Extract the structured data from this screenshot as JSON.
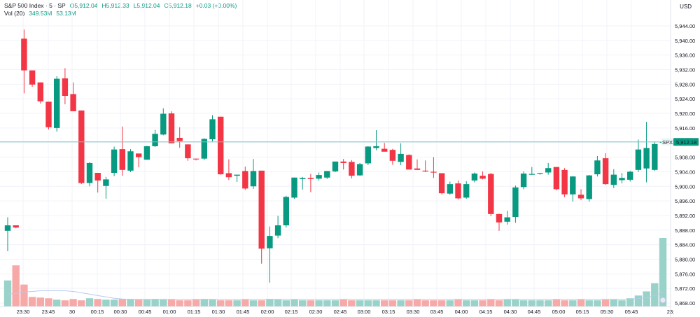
{
  "legend": {
    "symbol": "S&P 500 Index · 5 · SP",
    "open": "O5,912.04",
    "high": "H5,912.33",
    "low": "L5,912.04",
    "close": "C5,912.18",
    "change": "+0.03 (+0.00%)",
    "vol_label": "Vol (20)",
    "vol_value": "349.53M",
    "vol_ma": "53.13M"
  },
  "currency": "USD",
  "price_tag": {
    "symbol": "SPX",
    "value": "5,912.18"
  },
  "chart_data": {
    "type": "candlestick",
    "title": "S&P 500 Index · 5 · SP",
    "ylim": [
      5866,
      5948
    ],
    "y_ticks": [
      "5,944.00",
      "5,940.00",
      "5,936.00",
      "5,932.00",
      "5,928.00",
      "5,924.00",
      "5,920.00",
      "5,916.00",
      "5,912.00",
      "5,908.00",
      "5,904.00",
      "5,900.00",
      "5,896.00",
      "5,892.00",
      "5,888.00",
      "5,884.00",
      "5,880.00",
      "5,876.00",
      "5,872.00",
      "5,868.00"
    ],
    "x_ticks": [
      "23:30",
      "23:45",
      "30",
      "00:15",
      "00:30",
      "00:45",
      "01:00",
      "01:15",
      "01:30",
      "01:45",
      "02:00",
      "02:15",
      "02:30",
      "02:45",
      "03:00",
      "03:15",
      "03:30",
      "03:45",
      "04:00",
      "04:15",
      "04:30",
      "04:45",
      "05:00",
      "05:15",
      "05:30",
      "05:45",
      "23:"
    ],
    "last_price": 5912.18,
    "colors": {
      "up": "#089981",
      "down": "#F23645",
      "vol_up": "#98D2C8",
      "vol_down": "#F7A9A8",
      "ma": "#B8C9F0",
      "grid": "#F0F3FA"
    },
    "candles": [
      {
        "o": 5887.8,
        "h": 5891.5,
        "l": 5882.2,
        "c": 5889.3
      },
      {
        "o": 5889.3,
        "h": 5889.3,
        "l": 5888.5,
        "c": 5888.7
      },
      {
        "o": 5940.5,
        "h": 5943.0,
        "l": 5925.5,
        "c": 5931.8
      },
      {
        "o": 5931.8,
        "h": 5931.8,
        "l": 5927.3,
        "c": 5927.9
      },
      {
        "o": 5928.5,
        "h": 5928.5,
        "l": 5922.7,
        "c": 5923.3
      },
      {
        "o": 5923.2,
        "h": 5923.2,
        "l": 5915.6,
        "c": 5916.2
      },
      {
        "o": 5916.0,
        "h": 5930.2,
        "l": 5915.0,
        "c": 5929.5
      },
      {
        "o": 5929.6,
        "h": 5932.4,
        "l": 5922.5,
        "c": 5924.8
      },
      {
        "o": 5925.3,
        "h": 5928.5,
        "l": 5920.6,
        "c": 5920.6
      },
      {
        "o": 5920.8,
        "h": 5920.8,
        "l": 5900.6,
        "c": 5900.9
      },
      {
        "o": 5900.9,
        "h": 5906.6,
        "l": 5900.0,
        "c": 5906.4
      },
      {
        "o": 5903.7,
        "h": 5903.7,
        "l": 5898.3,
        "c": 5901.6
      },
      {
        "o": 5900.1,
        "h": 5902.6,
        "l": 5896.6,
        "c": 5901.9
      },
      {
        "o": 5903.7,
        "h": 5910.9,
        "l": 5902.8,
        "c": 5910.1
      },
      {
        "o": 5910.2,
        "h": 5916.4,
        "l": 5902.9,
        "c": 5904.5
      },
      {
        "o": 5904.3,
        "h": 5910.2,
        "l": 5903.9,
        "c": 5909.6
      },
      {
        "o": 5909.0,
        "h": 5909.0,
        "l": 5905.2,
        "c": 5908.0
      },
      {
        "o": 5907.3,
        "h": 5911.1,
        "l": 5907.3,
        "c": 5911.0
      },
      {
        "o": 5911.0,
        "h": 5915.5,
        "l": 5910.8,
        "c": 5914.4
      },
      {
        "o": 5914.2,
        "h": 5921.4,
        "l": 5914.0,
        "c": 5919.9
      },
      {
        "o": 5920.0,
        "h": 5920.6,
        "l": 5911.8,
        "c": 5911.8
      },
      {
        "o": 5913.3,
        "h": 5916.2,
        "l": 5910.6,
        "c": 5912.4
      },
      {
        "o": 5911.5,
        "h": 5911.5,
        "l": 5907.0,
        "c": 5907.7
      },
      {
        "o": 5907.6,
        "h": 5907.6,
        "l": 5907.1,
        "c": 5907.4
      },
      {
        "o": 5907.6,
        "h": 5913.2,
        "l": 5907.2,
        "c": 5913.0
      },
      {
        "o": 5912.9,
        "h": 5919.5,
        "l": 5912.3,
        "c": 5918.4
      },
      {
        "o": 5919.1,
        "h": 5919.1,
        "l": 5903.2,
        "c": 5903.3
      },
      {
        "o": 5903.6,
        "h": 5907.4,
        "l": 5901.7,
        "c": 5902.5
      },
      {
        "o": 5902.9,
        "h": 5902.9,
        "l": 5901.2,
        "c": 5903.2
      },
      {
        "o": 5904.2,
        "h": 5905.4,
        "l": 5899.0,
        "c": 5899.4
      },
      {
        "o": 5900.0,
        "h": 5907.5,
        "l": 5899.3,
        "c": 5904.2
      },
      {
        "o": 5904.3,
        "h": 5904.3,
        "l": 5878.8,
        "c": 5882.9
      },
      {
        "o": 5883.0,
        "h": 5889.0,
        "l": 5873.6,
        "c": 5886.4
      },
      {
        "o": 5886.5,
        "h": 5891.9,
        "l": 5885.8,
        "c": 5889.3
      },
      {
        "o": 5889.3,
        "h": 5897.4,
        "l": 5888.7,
        "c": 5897.1
      },
      {
        "o": 5896.9,
        "h": 5902.4,
        "l": 5896.6,
        "c": 5902.4
      },
      {
        "o": 5902.0,
        "h": 5902.6,
        "l": 5899.1,
        "c": 5902.3
      },
      {
        "o": 5902.3,
        "h": 5903.4,
        "l": 5898.4,
        "c": 5902.0
      },
      {
        "o": 5902.1,
        "h": 5903.8,
        "l": 5901.6,
        "c": 5903.1
      },
      {
        "o": 5902.4,
        "h": 5904.2,
        "l": 5902.0,
        "c": 5904.2
      },
      {
        "o": 5904.1,
        "h": 5906.6,
        "l": 5903.9,
        "c": 5906.8
      },
      {
        "o": 5906.8,
        "h": 5907.5,
        "l": 5904.6,
        "c": 5906.4
      },
      {
        "o": 5906.7,
        "h": 5907.2,
        "l": 5902.2,
        "c": 5902.9
      },
      {
        "o": 5903.0,
        "h": 5906.4,
        "l": 5902.9,
        "c": 5906.1
      },
      {
        "o": 5906.3,
        "h": 5911.0,
        "l": 5905.8,
        "c": 5910.9
      },
      {
        "o": 5910.5,
        "h": 5915.4,
        "l": 5909.9,
        "c": 5911.0
      },
      {
        "o": 5910.3,
        "h": 5911.9,
        "l": 5909.6,
        "c": 5909.5
      },
      {
        "o": 5910.0,
        "h": 5910.3,
        "l": 5905.9,
        "c": 5907.0
      },
      {
        "o": 5906.7,
        "h": 5911.8,
        "l": 5905.8,
        "c": 5908.9
      },
      {
        "o": 5908.6,
        "h": 5908.8,
        "l": 5904.8,
        "c": 5904.6
      },
      {
        "o": 5904.9,
        "h": 5907.4,
        "l": 5904.5,
        "c": 5904.5
      },
      {
        "o": 5904.3,
        "h": 5907.1,
        "l": 5903.9,
        "c": 5904.2
      },
      {
        "o": 5904.0,
        "h": 5908.0,
        "l": 5902.3,
        "c": 5903.8
      },
      {
        "o": 5903.6,
        "h": 5903.6,
        "l": 5897.8,
        "c": 5898.1
      },
      {
        "o": 5898.0,
        "h": 5901.3,
        "l": 5897.7,
        "c": 5900.6
      },
      {
        "o": 5900.8,
        "h": 5901.6,
        "l": 5896.4,
        "c": 5896.7
      },
      {
        "o": 5896.9,
        "h": 5901.4,
        "l": 5896.6,
        "c": 5900.6
      },
      {
        "o": 5901.6,
        "h": 5903.8,
        "l": 5901.1,
        "c": 5903.5
      },
      {
        "o": 5902.9,
        "h": 5904.1,
        "l": 5901.9,
        "c": 5902.1
      },
      {
        "o": 5903.4,
        "h": 5903.7,
        "l": 5891.8,
        "c": 5892.4
      },
      {
        "o": 5892.4,
        "h": 5892.5,
        "l": 5887.8,
        "c": 5890.1
      },
      {
        "o": 5890.3,
        "h": 5893.3,
        "l": 5889.5,
        "c": 5891.5
      },
      {
        "o": 5891.6,
        "h": 5900.2,
        "l": 5890.0,
        "c": 5899.7
      },
      {
        "o": 5899.8,
        "h": 5904.1,
        "l": 5899.2,
        "c": 5903.5
      },
      {
        "o": 5903.2,
        "h": 5905.3,
        "l": 5903.2,
        "c": 5903.4
      },
      {
        "o": 5903.7,
        "h": 5903.7,
        "l": 5903.2,
        "c": 5903.7
      },
      {
        "o": 5903.8,
        "h": 5906.4,
        "l": 5903.2,
        "c": 5905.0
      },
      {
        "o": 5905.3,
        "h": 5905.3,
        "l": 5898.9,
        "c": 5899.2
      },
      {
        "o": 5904.5,
        "h": 5905.0,
        "l": 5897.0,
        "c": 5897.8
      },
      {
        "o": 5897.8,
        "h": 5902.8,
        "l": 5895.8,
        "c": 5902.7
      },
      {
        "o": 5897.7,
        "h": 5899.2,
        "l": 5896.2,
        "c": 5896.7
      },
      {
        "o": 5896.5,
        "h": 5903.1,
        "l": 5895.8,
        "c": 5903.0
      },
      {
        "o": 5903.3,
        "h": 5908.3,
        "l": 5902.7,
        "c": 5907.1
      },
      {
        "o": 5907.7,
        "h": 5909.1,
        "l": 5900.4,
        "c": 5900.6
      },
      {
        "o": 5900.4,
        "h": 5904.7,
        "l": 5899.5,
        "c": 5903.2
      },
      {
        "o": 5901.7,
        "h": 5903.7,
        "l": 5900.8,
        "c": 5902.3
      },
      {
        "o": 5901.8,
        "h": 5904.3,
        "l": 5901.3,
        "c": 5904.0
      },
      {
        "o": 5904.5,
        "h": 5912.8,
        "l": 5903.9,
        "c": 5910.1
      },
      {
        "o": 5904.9,
        "h": 5917.7,
        "l": 5901.1,
        "c": 5910.5
      },
      {
        "o": 5904.5,
        "h": 5912.2,
        "l": 5904.2,
        "c": 5911.6
      },
      {
        "o": 5912.04,
        "h": 5912.33,
        "l": 5912.04,
        "c": 5912.18
      }
    ],
    "volume": [
      38,
      60,
      32,
      14,
      13,
      12,
      10,
      9,
      11,
      9,
      12,
      11,
      10,
      10,
      11,
      11,
      10,
      10,
      11,
      10,
      10,
      9,
      9,
      10,
      11,
      10,
      9,
      9,
      9,
      10,
      9,
      9,
      11,
      10,
      9,
      10,
      9,
      9,
      9,
      9,
      9,
      10,
      9,
      9,
      9,
      9,
      9,
      9,
      9,
      9,
      10,
      9,
      9,
      9,
      9,
      10,
      9,
      9,
      9,
      10,
      9,
      10,
      10,
      9,
      9,
      9,
      9,
      10,
      9,
      9,
      10,
      9,
      9,
      10,
      10,
      9,
      12,
      16,
      22,
      34,
      100
    ],
    "volume_ma": [
      18,
      19,
      21,
      22,
      23,
      23,
      23,
      23,
      22,
      20,
      18,
      16,
      14,
      12,
      11,
      10.5,
      10.5,
      10.5,
      10.5,
      10.5,
      10.5,
      10.5,
      10.5,
      10.5,
      10.5,
      10.5,
      10.5,
      10.5,
      10.5,
      10.5,
      10.5,
      10.5,
      10.5,
      10.5,
      10.5,
      10.5,
      10.5,
      10.5,
      10.5,
      10.5,
      10.5,
      10.5,
      10.5,
      10.5,
      10.5,
      10.5,
      10.5,
      10.5,
      10.5,
      10.5,
      10.5,
      10.5,
      10.5,
      10.5,
      10.5,
      10.5,
      10.5,
      10.5,
      10.5,
      10.5,
      10.5,
      10.5,
      10.5,
      10.5,
      10.5,
      10.5,
      10.5,
      10.5,
      10.5,
      10.5,
      10.5,
      10.5,
      10.5,
      10.5,
      10.5,
      10.5,
      10.8,
      11.5,
      13,
      16,
      21
    ]
  }
}
